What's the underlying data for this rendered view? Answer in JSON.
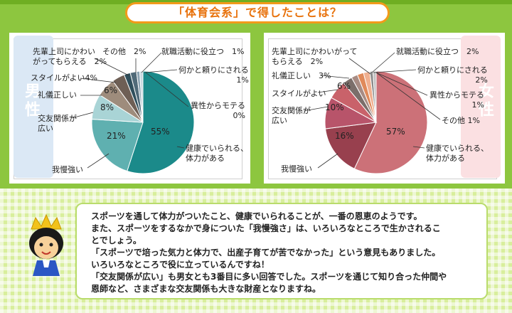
{
  "header": {
    "title": "「体育会系」で得したことは？"
  },
  "chart_data": [
    {
      "type": "pie",
      "group": "男性",
      "slices": [
        {
          "label": "健康でいられる、体力がある",
          "value": 55,
          "value_label": "55%",
          "color": "#1b8a8a"
        },
        {
          "label": "我慢強い",
          "value": 21,
          "value_label": "21%",
          "color": "#5fb0b0"
        },
        {
          "label": "交友関係が広い",
          "value": 8,
          "value_label": "8%",
          "color": "#a9d4d6"
        },
        {
          "label": "礼儀正しい",
          "value": 6,
          "value_label": "6%",
          "color": "#9e8c7c"
        },
        {
          "label": "スタイルがよい",
          "value": 4,
          "value_label": "4%",
          "color": "#6e5f55"
        },
        {
          "label": "先輩上司にかわいがってもらえる",
          "value": 2,
          "value_label": "2%",
          "color": "#2f4f5c"
        },
        {
          "label": "その他",
          "value": 2,
          "value_label": "2%",
          "color": "#506a78"
        },
        {
          "label": "就職活動に役立つ",
          "value": 1,
          "value_label": "1%",
          "color": "#8aa2b0"
        },
        {
          "label": "何かと頼りにされる",
          "value": 1,
          "value_label": "1%",
          "color": "#c8d8e0"
        },
        {
          "label": "異性からモテる",
          "value": 0,
          "value_label": "0%",
          "color": "#e0e0e0"
        }
      ]
    },
    {
      "type": "pie",
      "group": "女性",
      "slices": [
        {
          "label": "健康でいられる、体力がある",
          "value": 57,
          "value_label": "57%",
          "color": "#cc7178"
        },
        {
          "label": "我慢強い",
          "value": 16,
          "value_label": "16%",
          "color": "#98404e"
        },
        {
          "label": "交友関係が広い",
          "value": 10,
          "value_label": "10%",
          "color": "#b8546a"
        },
        {
          "label": "スタイルがよい",
          "value": 6,
          "value_label": "6%",
          "color": "#c9626a"
        },
        {
          "label": "礼儀正しい",
          "value": 3,
          "value_label": "3%",
          "color": "#7b6e6a"
        },
        {
          "label": "先輩上司にかわいがってもらえる",
          "value": 2,
          "value_label": "2%",
          "color": "#a88c84"
        },
        {
          "label": "就職活動に役立つ",
          "value": 2,
          "value_label": "2%",
          "color": "#e08a5a"
        },
        {
          "label": "何かと頼りにされる",
          "value": 2,
          "value_label": "2%",
          "color": "#f0b090"
        },
        {
          "label": "異性からモテる",
          "value": 1,
          "value_label": "1%",
          "color": "#8a8a8a"
        },
        {
          "label": "その他",
          "value": 1,
          "value_label": "1%",
          "color": "#c0c0c0"
        }
      ]
    }
  ],
  "male": {
    "side_label": "男性",
    "labels": {
      "senpai": "先輩上司にかわい\nがってもらえる　2%",
      "sonota": "その他　2%",
      "shushoku": "就職活動に役立つ　1%",
      "tayori": "何かと頼りにされる\n1%",
      "style": "スタイルがよい4%",
      "moteru": "異性からモテる\n0%",
      "reigi": "礼儀正しい",
      "kouyu": "交友関係が\n広い",
      "gaman": "我慢強い",
      "kenkou": "健康でいられる、\n体力がある"
    },
    "in_labels": {
      "p55": "55%",
      "p21": "21%",
      "p8": "8%",
      "p6": "6%"
    }
  },
  "female": {
    "side_label": "女性",
    "labels": {
      "senpai": "先輩上司にかわいがって\nもらえる　2%",
      "shushoku": "就職活動に役立つ　2%",
      "tayori": "何かと頼りにされる\n2%",
      "reigi": "礼儀正しい　3%",
      "moteru": "異性からモテる\n1%",
      "style": "スタイルがよい",
      "sonota": "その他 1%",
      "kouyu": "交友関係が\n広い",
      "gaman": "我慢強い",
      "kenkou": "健康でいられる、\n体力がある"
    },
    "in_labels": {
      "p57": "57%",
      "p16": "16%",
      "p10": "10%",
      "p6": "6%"
    }
  },
  "message": {
    "lines": [
      "スポーツを通して体力がついたこと、健康でいられることが、一番の恩恵のようです。",
      "また、スポーツをするなかで身についた「我慢強さ」は、いろいろなところで生かされるこ",
      "とでしょう。",
      "「スポーツで培った気力と体力で、出産子育てが苦でなかった」という意見もありました。",
      "いろいろなところで役に立っているんですね！",
      "「交友関係が広い」も男女とも3番目に多い回答でした。スポーツを通じて知り合った仲間や",
      "恩師など、さまざまな交友関係も大きな財産となりますね。"
    ]
  }
}
